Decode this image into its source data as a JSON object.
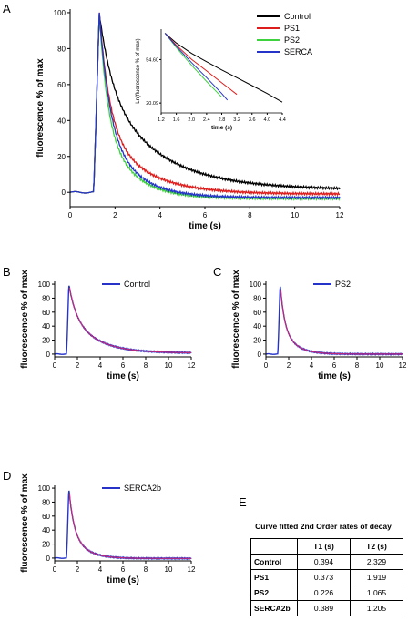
{
  "panels": {
    "A": {
      "letter": "A"
    },
    "B": {
      "letter": "B"
    },
    "C": {
      "letter": "C"
    },
    "D": {
      "letter": "D"
    },
    "E": {
      "letter": "E"
    }
  },
  "colors": {
    "Control": "#000000",
    "PS1": "#dd1c1c",
    "PS2": "#3fd23f",
    "SERCA": "#2633c9",
    "fit": "#c0287a"
  },
  "chart_data": [
    {
      "id": "A",
      "type": "line",
      "xlabel": "time (s)",
      "ylabel": "fluorescence % of max",
      "xlim": [
        0,
        12
      ],
      "ylim": [
        -8,
        102
      ],
      "xticks": [
        0,
        2,
        4,
        6,
        8,
        10,
        12
      ],
      "yticks": [
        0,
        20,
        40,
        60,
        80,
        100
      ],
      "legend_position": "top-right",
      "series": [
        {
          "name": "Control",
          "onset": 1.05,
          "peak_t": 1.3,
          "plateau": 1.5,
          "fast_amp": 38,
          "tau_fast": 0.55,
          "slow_amp": 60,
          "tau_slow": 2.4
        },
        {
          "name": "PS1",
          "onset": 1.05,
          "peak_t": 1.3,
          "plateau": -1.0,
          "fast_amp": 62,
          "tau_fast": 0.45,
          "slow_amp": 39,
          "tau_slow": 1.8
        },
        {
          "name": "PS2",
          "onset": 1.05,
          "peak_t": 1.3,
          "plateau": -3.5,
          "fast_amp": 58,
          "tau_fast": 0.35,
          "slow_amp": 45,
          "tau_slow": 1.25
        },
        {
          "name": "SERCA",
          "onset": 1.05,
          "peak_t": 1.3,
          "plateau": -3.0,
          "fast_amp": 57,
          "tau_fast": 0.42,
          "slow_amp": 46,
          "tau_slow": 1.3
        }
      ],
      "inset": {
        "xlabel": "time (s)",
        "ylabel": "Ln(fluorescence % of max)",
        "xlim": [
          1.2,
          4.4
        ],
        "xticks": [
          "1.2",
          "1.6",
          "2.0",
          "2.4",
          "2.8",
          "3.2",
          "3.6",
          "4.0",
          "4.4"
        ],
        "yticks": [
          "20.09",
          "54.60"
        ],
        "series": [
          {
            "name": "Control",
            "points": [
              [
                1.3,
                100
              ],
              [
                1.6,
                80
              ],
              [
                2.0,
                63
              ],
              [
                2.4,
                52
              ],
              [
                2.8,
                43
              ],
              [
                3.2,
                36
              ],
              [
                3.6,
                30
              ],
              [
                4.0,
                25
              ],
              [
                4.4,
                20.5
              ]
            ]
          },
          {
            "name": "PS1",
            "points": [
              [
                1.3,
                100
              ],
              [
                1.6,
                76
              ],
              [
                2.0,
                55
              ],
              [
                2.4,
                42
              ],
              [
                2.8,
                32
              ],
              [
                3.2,
                24.5
              ]
            ]
          },
          {
            "name": "PS2",
            "points": [
              [
                1.3,
                100
              ],
              [
                1.6,
                72
              ],
              [
                2.0,
                48
              ],
              [
                2.4,
                33
              ],
              [
                2.8,
                23
              ]
            ]
          },
          {
            "name": "SERCA",
            "points": [
              [
                1.3,
                100
              ],
              [
                1.6,
                74
              ],
              [
                2.0,
                51
              ],
              [
                2.4,
                36
              ],
              [
                2.8,
                25
              ],
              [
                2.95,
                21.5
              ]
            ]
          }
        ]
      }
    },
    {
      "id": "B",
      "type": "line",
      "xlabel": "time (s)",
      "ylabel": "fluorescence % of max",
      "xlim": [
        0,
        12
      ],
      "ylim": [
        -4,
        104
      ],
      "xticks": [
        0,
        2,
        4,
        6,
        8,
        10,
        12
      ],
      "yticks": [
        0,
        20,
        40,
        60,
        80,
        100
      ],
      "legend_position": "top-right",
      "legend": [
        "Control"
      ],
      "series": [
        {
          "name": "Control",
          "onset": 1.05,
          "peak_t": 1.25,
          "plateau": 1.5,
          "fast_amp": 40,
          "tau_fast": 0.6,
          "slow_amp": 58,
          "tau_slow": 2.2
        }
      ]
    },
    {
      "id": "C",
      "type": "line",
      "xlabel": "time (s)",
      "ylabel": "fluorescence % of max",
      "xlim": [
        0,
        12
      ],
      "ylim": [
        -4,
        104
      ],
      "xticks": [
        0,
        2,
        4,
        6,
        8,
        10,
        12
      ],
      "yticks": [
        0,
        20,
        40,
        60,
        80,
        100
      ],
      "legend_position": "top-right",
      "legend": [
        "PS2"
      ],
      "series": [
        {
          "name": "PS2",
          "onset": 1.05,
          "peak_t": 1.25,
          "plateau": 0.0,
          "fast_amp": 55,
          "tau_fast": 0.35,
          "slow_amp": 45,
          "tau_slow": 1.1
        }
      ]
    },
    {
      "id": "D",
      "type": "line",
      "xlabel": "time (s)",
      "ylabel": "fluorescence % of max",
      "xlim": [
        0,
        12
      ],
      "ylim": [
        -4,
        104
      ],
      "xticks": [
        0,
        2,
        4,
        6,
        8,
        10,
        12
      ],
      "yticks": [
        0,
        20,
        40,
        60,
        80,
        100
      ],
      "legend_position": "top-right",
      "legend": [
        "SERCA2b"
      ],
      "series": [
        {
          "name": "SERCA2b",
          "onset": 1.05,
          "peak_t": 1.25,
          "plateau": -0.5,
          "fast_amp": 55,
          "tau_fast": 0.4,
          "slow_amp": 45,
          "tau_slow": 1.2
        }
      ]
    },
    {
      "id": "E",
      "type": "table",
      "title": "Curve fitted 2nd Order rates of decay",
      "columns": [
        "",
        "T1 (s)",
        "T2 (s)"
      ],
      "rows": [
        {
          "label": "Control",
          "t1": "0.394",
          "t2": "2.329"
        },
        {
          "label": "PS1",
          "t1": "0.373",
          "t2": "1.919"
        },
        {
          "label": "PS2",
          "t1": "0.226",
          "t2": "1.065"
        },
        {
          "label": "SERCA2b",
          "t1": "0.389",
          "t2": "1.205"
        }
      ]
    }
  ]
}
